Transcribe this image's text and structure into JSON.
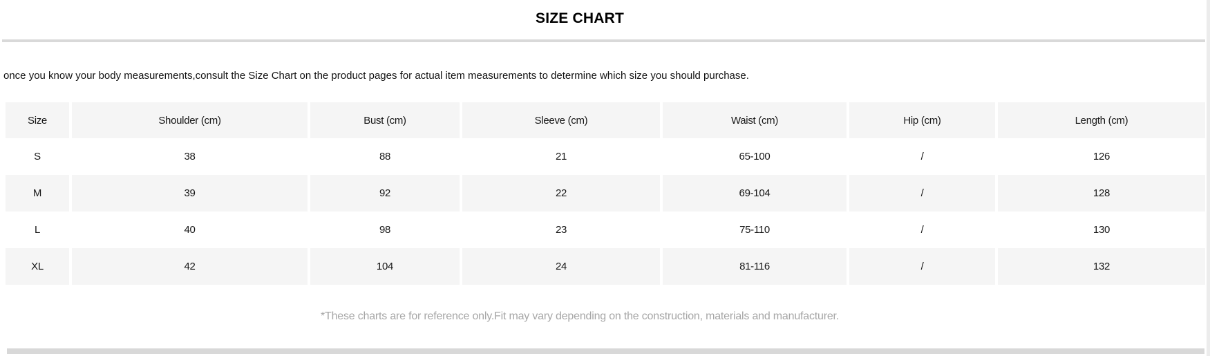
{
  "page": {
    "title": "SIZE CHART",
    "intro": "once you know your body measurements,consult the Size Chart on the product pages for actual item measurements to determine which size you should purchase.",
    "footnote": "*These charts are for reference only.Fit may vary depending on the construction, materials and manufacturer."
  },
  "size_table": {
    "columns": [
      "Size",
      "Shoulder (cm)",
      "Bust (cm)",
      "Sleeve (cm)",
      "Waist (cm)",
      "Hip (cm)",
      "Length (cm)"
    ],
    "rows": [
      [
        "S",
        "38",
        "88",
        "21",
        "65-100",
        "/",
        "126"
      ],
      [
        "M",
        "39",
        "92",
        "22",
        "69-104",
        "/",
        "128"
      ],
      [
        "L",
        "40",
        "98",
        "23",
        "75-110",
        "/",
        "130"
      ],
      [
        "XL",
        "42",
        "104",
        "24",
        "81-116",
        "/",
        "132"
      ]
    ]
  },
  "colors": {
    "cell_background": "#f5f5f5",
    "top_divider": "#d9d9d9",
    "bottom_bar": "#d8d8d8",
    "scrollbar_track": "#ececec",
    "footnote_text": "#a6a6a6",
    "title_text": "#000000",
    "body_text": "#161616"
  }
}
